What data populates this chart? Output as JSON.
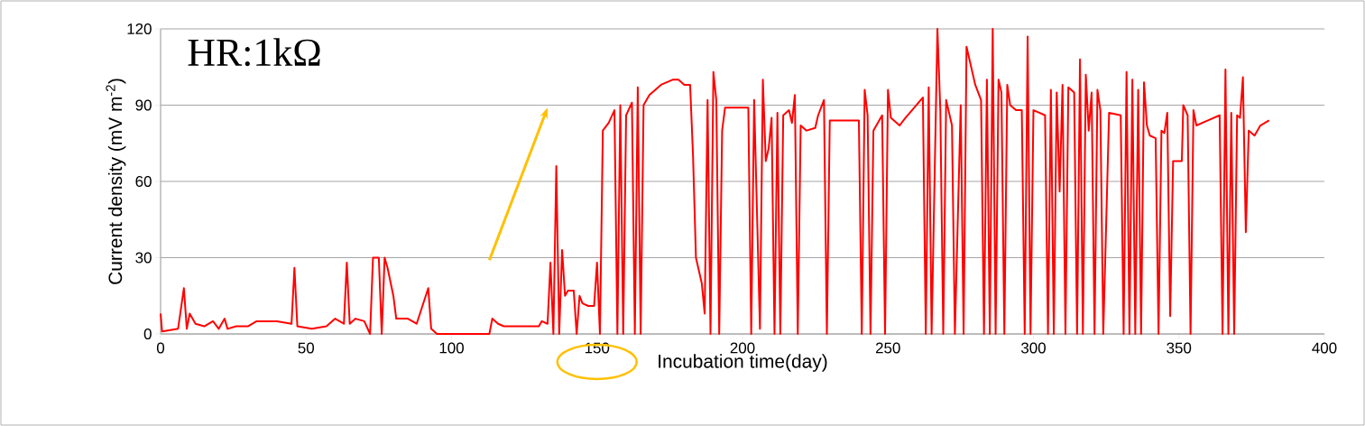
{
  "chart_data": {
    "type": "line",
    "xlabel": "Incubation time(day)",
    "ylabel": "Current density (mV m$^{-2}$)",
    "annotations": [
      "HR:1kΩ"
    ],
    "xlim": [
      0,
      400
    ],
    "ylim": [
      0,
      120
    ],
    "xticks": [
      0,
      50,
      100,
      150,
      200,
      250,
      300,
      350,
      400
    ],
    "yticks": [
      0,
      30,
      60,
      90,
      120
    ],
    "grid": "y",
    "marker": "none",
    "line_style": "solid",
    "series": [
      {
        "color": "#ff0000",
        "x": [
          0,
          0.5,
          6,
          8,
          9,
          10,
          12,
          15,
          18,
          20,
          22,
          23,
          26,
          30,
          33,
          36,
          40,
          45,
          46,
          47,
          52,
          57,
          60,
          63,
          64,
          65,
          67,
          70,
          72,
          73,
          75,
          76,
          77,
          78,
          80,
          81,
          85,
          88,
          92,
          93,
          95,
          113,
          114,
          116,
          118,
          130,
          131,
          133,
          134,
          135,
          136,
          137,
          138,
          139,
          140,
          142,
          143,
          144,
          145,
          147,
          149,
          150,
          151,
          152,
          154,
          156,
          157,
          158,
          159,
          160,
          162,
          163,
          164,
          165,
          166,
          168,
          172,
          176,
          178,
          180,
          182,
          183,
          184,
          186,
          187,
          188,
          189,
          190,
          191,
          192,
          193,
          194,
          202,
          203,
          204,
          206,
          207,
          208,
          209,
          210,
          211,
          212,
          213,
          214,
          216,
          217,
          218,
          219,
          220,
          222,
          225,
          226,
          228,
          229,
          230,
          240,
          241,
          242,
          243,
          244,
          245,
          248,
          249,
          250,
          251,
          254,
          256,
          259,
          262,
          263,
          264,
          265,
          267,
          268,
          269,
          270,
          272,
          273,
          275,
          276,
          277,
          280,
          282,
          283,
          284,
          285,
          286,
          287,
          288,
          289,
          290,
          291,
          292,
          294,
          296,
          297,
          298,
          299,
          300,
          302,
          304,
          305,
          306,
          307,
          308,
          309,
          310,
          311,
          312,
          314,
          315,
          316,
          317,
          318,
          319,
          320,
          321,
          322,
          323,
          324,
          326,
          330,
          331,
          332,
          333,
          334,
          335,
          336,
          337,
          338,
          339,
          340,
          342,
          343,
          344,
          345,
          346,
          347,
          348,
          351,
          351.5,
          353,
          354,
          355,
          356,
          360,
          364,
          365,
          366,
          367,
          368,
          369,
          370,
          371,
          372,
          373,
          374,
          376,
          378,
          381
        ],
        "values": [
          8,
          1,
          2,
          18,
          2,
          8,
          4,
          3,
          5,
          2,
          6,
          2,
          3,
          3,
          5,
          5,
          5,
          4,
          26,
          3,
          2,
          3,
          6,
          4,
          28,
          4,
          6,
          5,
          0,
          30,
          30,
          0,
          30,
          26,
          15,
          6,
          6,
          4,
          18,
          2,
          0,
          0,
          6,
          4,
          3,
          3,
          5,
          4,
          28,
          0,
          66,
          0,
          33,
          15,
          17,
          17,
          0,
          15,
          12,
          11,
          11,
          28,
          0,
          80,
          83,
          88,
          0,
          90,
          0,
          86,
          91,
          0,
          97,
          0,
          90,
          94,
          98,
          100,
          100,
          98,
          98,
          70,
          30,
          20,
          8,
          92,
          0,
          103,
          92,
          0,
          80,
          89,
          89,
          0,
          92,
          2,
          100,
          68,
          73,
          85,
          0,
          87,
          0,
          86,
          88,
          83,
          94,
          0,
          82,
          80,
          81,
          86,
          92,
          0,
          84,
          84,
          0,
          96,
          86,
          0,
          80,
          86,
          0,
          96,
          85,
          82,
          85,
          89,
          93,
          0,
          97,
          0,
          120,
          88,
          0,
          92,
          82,
          0,
          90,
          0,
          113,
          98,
          92,
          0,
          100,
          0,
          120,
          0,
          100,
          95,
          0,
          98,
          90,
          88,
          88,
          0,
          117,
          0,
          88,
          87,
          86,
          0,
          96,
          0,
          95,
          56,
          98,
          0,
          97,
          95,
          0,
          108,
          0,
          102,
          80,
          95,
          0,
          96,
          88,
          0,
          87,
          86,
          0,
          103,
          0,
          100,
          0,
          96,
          0,
          99,
          82,
          78,
          77,
          0,
          80,
          79,
          87,
          7,
          68,
          68,
          90,
          86,
          0,
          88,
          82,
          84,
          86,
          0,
          104,
          0,
          87,
          0,
          86,
          85,
          101,
          40,
          80,
          78,
          82,
          84
        ]
      }
    ]
  }
}
